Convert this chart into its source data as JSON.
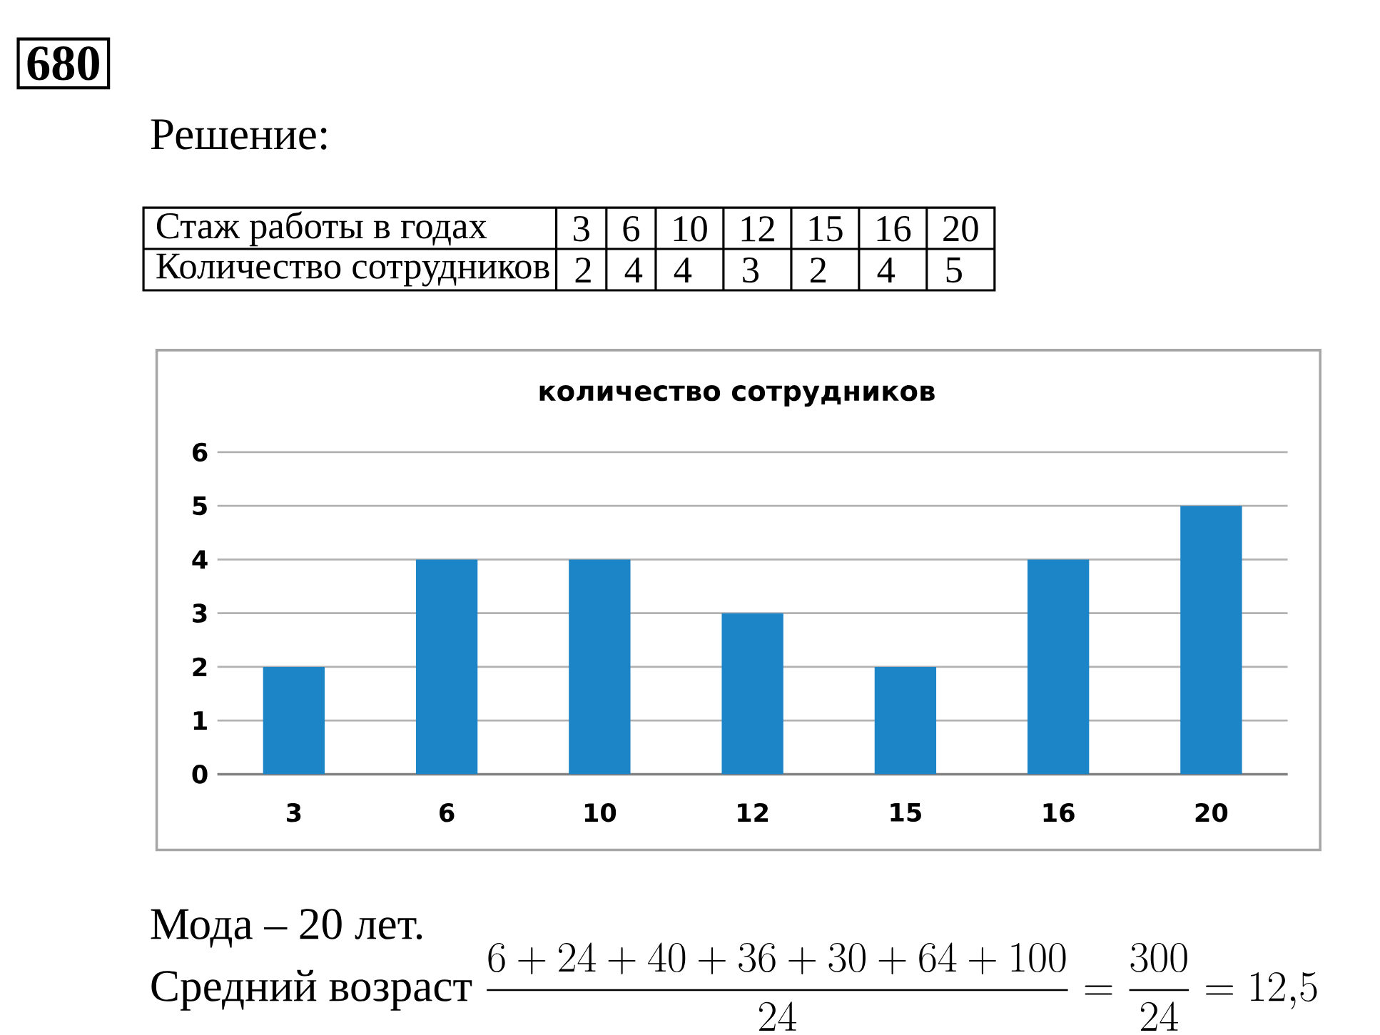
{
  "chart_data": {
    "type": "bar",
    "title": "количество сотрудников",
    "categories": [
      "3",
      "6",
      "10",
      "12",
      "15",
      "16",
      "20"
    ],
    "values": [
      2,
      4,
      4,
      3,
      2,
      4,
      5
    ],
    "color": "#1c85c8",
    "ylim": [
      0,
      6
    ],
    "yticks": [
      0,
      1,
      2,
      3,
      4,
      5,
      6
    ],
    "grid": "y",
    "annotations": [
      "680",
      "Решение:",
      "Стаж работы в годах",
      "Количество сотрудников",
      "Мода – 20 лет.",
      "Средний возраст",
      "\\frac{6+24+40+36+30+64+100}{24}=\\frac{300}{24}=12{,}5",
      "2",
      "4",
      "4",
      "3",
      "2",
      "4",
      "5"
    ]
  }
}
